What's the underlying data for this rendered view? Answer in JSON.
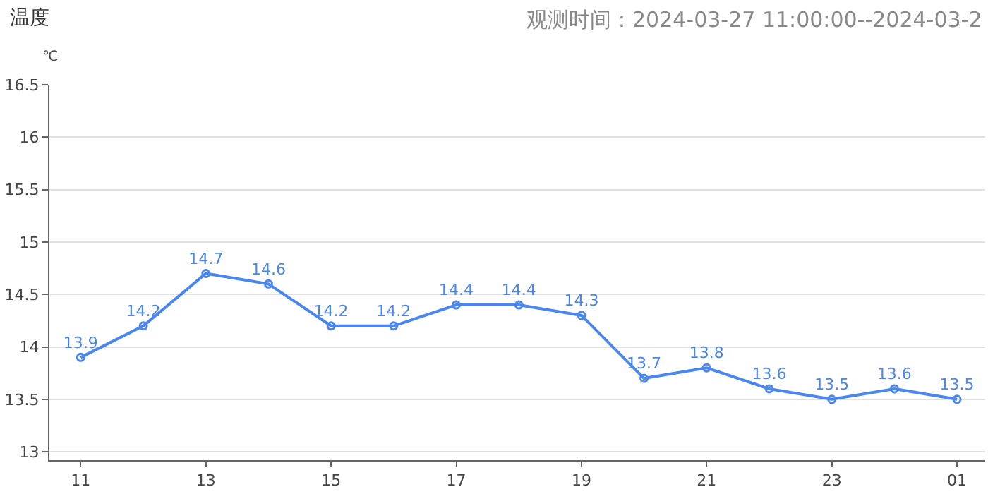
{
  "chart_data": {
    "type": "line",
    "title": "温度",
    "subtitle": "观测时间：2024-03-27 11:00:00--2024-03-2",
    "ylabel": "℃",
    "categories": [
      "11",
      null,
      "13",
      null,
      "15",
      null,
      "17",
      null,
      "19",
      null,
      "21",
      null,
      "23",
      null,
      "01"
    ],
    "series": [
      {
        "color": "#4a86f0",
        "values": [
          13.9,
          14.2,
          14.7,
          14.6,
          14.2,
          14.2,
          14.4,
          14.4,
          14.3,
          13.7,
          13.8,
          13.6,
          13.5,
          13.6,
          13.5
        ]
      }
    ],
    "ylim": [
      12.92,
      16.5
    ],
    "yticks": [
      13,
      13.5,
      14,
      14.5,
      15,
      15.5,
      16,
      16.5
    ],
    "grid": "y",
    "data_labels": true,
    "marker": "circle",
    "line_style": "solid",
    "legend": false
  }
}
